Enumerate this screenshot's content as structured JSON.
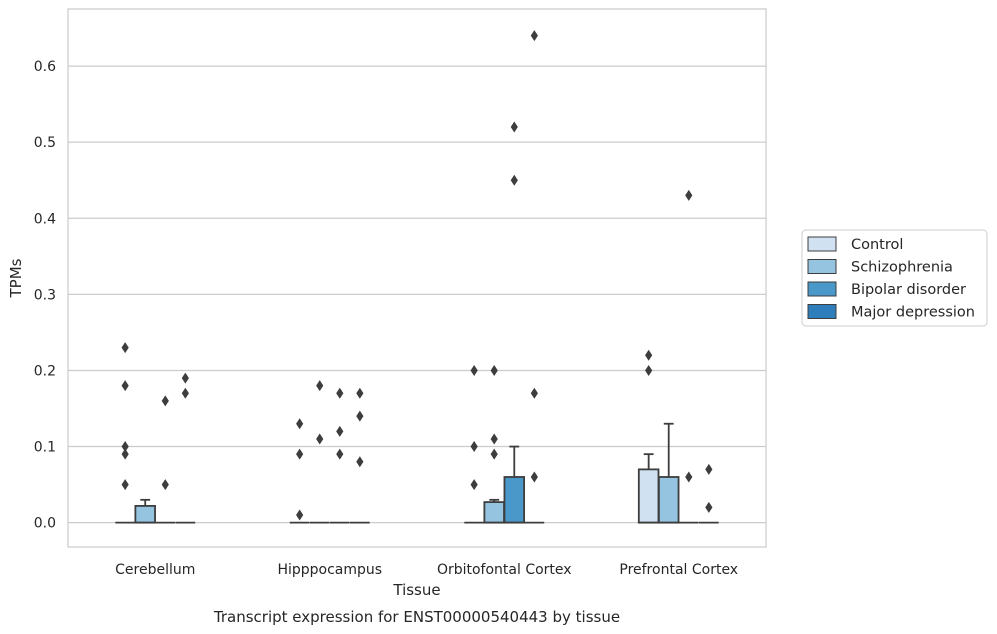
{
  "chart_data": {
    "type": "box",
    "title": "",
    "caption": "Transcript expression for ENST00000540443 by tissue",
    "xlabel": "Tissue",
    "ylabel": "TPMs",
    "ylim": [
      -0.032,
      0.675
    ],
    "yticks": [
      0.0,
      0.1,
      0.2,
      0.3,
      0.4,
      0.5,
      0.6
    ],
    "ytick_labels": [
      "0.0",
      "0.1",
      "0.2",
      "0.3",
      "0.4",
      "0.5",
      "0.6"
    ],
    "categories": [
      "Cerebellum",
      "Hipppocampus",
      "Orbitofontal Cortex",
      "Prefrontal Cortex"
    ],
    "grid": "horizontal",
    "legend_position": "right",
    "series": [
      {
        "name": "Control",
        "color": "#d0e1f2",
        "boxes": [
          {
            "q1": 0,
            "median": 0,
            "q3": 0,
            "whislo": 0,
            "whishi": 0,
            "fliers": [
              0.23,
              0.18,
              0.1,
              0.09,
              0.05
            ]
          },
          {
            "q1": 0,
            "median": 0,
            "q3": 0,
            "whislo": 0,
            "whishi": 0,
            "fliers": [
              0.13,
              0.09,
              0.01
            ]
          },
          {
            "q1": 0,
            "median": 0,
            "q3": 0,
            "whislo": 0,
            "whishi": 0,
            "fliers": [
              0.2,
              0.1,
              0.05
            ]
          },
          {
            "q1": 0,
            "median": 0,
            "q3": 0.07,
            "whislo": 0,
            "whishi": 0.09,
            "fliers": [
              0.22,
              0.2
            ]
          }
        ]
      },
      {
        "name": "Schizophrenia",
        "color": "#94c4df",
        "boxes": [
          {
            "q1": 0,
            "median": 0,
            "q3": 0.022,
            "whislo": 0,
            "whishi": 0.03,
            "fliers": []
          },
          {
            "q1": 0,
            "median": 0,
            "q3": 0,
            "whislo": 0,
            "whishi": 0,
            "fliers": [
              0.18,
              0.11
            ]
          },
          {
            "q1": 0,
            "median": 0,
            "q3": 0.027,
            "whislo": 0,
            "whishi": 0.03,
            "fliers": [
              0.2,
              0.11,
              0.09
            ]
          },
          {
            "q1": 0,
            "median": 0,
            "q3": 0.06,
            "whislo": 0,
            "whishi": 0.13,
            "fliers": []
          }
        ]
      },
      {
        "name": "Bipolar disorder",
        "color": "#4a98c9",
        "boxes": [
          {
            "q1": 0,
            "median": 0,
            "q3": 0,
            "whislo": 0,
            "whishi": 0,
            "fliers": [
              0.16,
              0.05
            ]
          },
          {
            "q1": 0,
            "median": 0,
            "q3": 0,
            "whislo": 0,
            "whishi": 0,
            "fliers": [
              0.17,
              0.12,
              0.09
            ]
          },
          {
            "q1": 0,
            "median": 0,
            "q3": 0.06,
            "whislo": 0,
            "whishi": 0.1,
            "fliers": [
              0.52,
              0.45
            ]
          },
          {
            "q1": 0,
            "median": 0,
            "q3": 0,
            "whislo": 0,
            "whishi": 0,
            "fliers": [
              0.43,
              0.06
            ]
          }
        ]
      },
      {
        "name": "Major depression",
        "color": "#2e7ebc",
        "boxes": [
          {
            "q1": 0,
            "median": 0,
            "q3": 0,
            "whislo": 0,
            "whishi": 0,
            "fliers": [
              0.19,
              0.17
            ]
          },
          {
            "q1": 0,
            "median": 0,
            "q3": 0,
            "whislo": 0,
            "whishi": 0,
            "fliers": [
              0.17,
              0.14,
              0.08
            ]
          },
          {
            "q1": 0,
            "median": 0,
            "q3": 0,
            "whislo": 0,
            "whishi": 0,
            "fliers": [
              0.64,
              0.17,
              0.06
            ]
          },
          {
            "q1": 0,
            "median": 0,
            "q3": 0,
            "whislo": 0,
            "whishi": 0,
            "fliers": [
              0.07,
              0.02
            ]
          }
        ]
      }
    ]
  }
}
